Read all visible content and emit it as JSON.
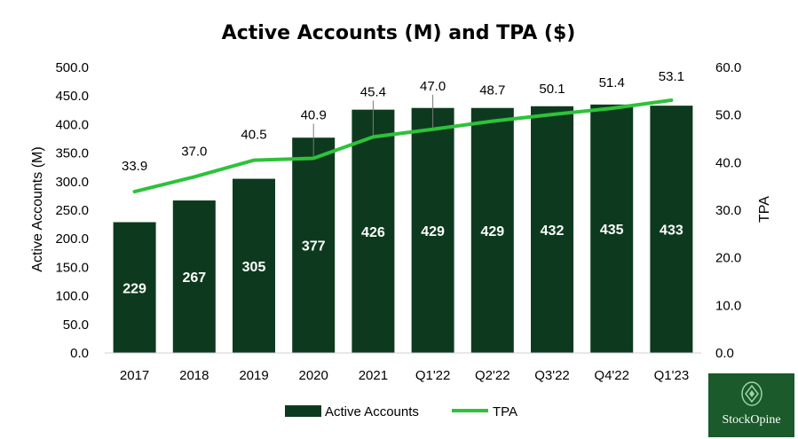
{
  "chart_data": {
    "type": "bar",
    "title": "Active Accounts (M) and TPA ($)",
    "categories": [
      "2017",
      "2018",
      "2019",
      "2020",
      "2021",
      "Q1'22",
      "Q2'22",
      "Q3'22",
      "Q4'22",
      "Q1'23"
    ],
    "series": [
      {
        "name": "Active Accounts",
        "type": "bar",
        "axis": "left",
        "values": [
          229,
          267,
          305,
          377,
          426,
          429,
          429,
          432,
          435,
          433
        ],
        "color": "#0d3a1f"
      },
      {
        "name": "TPA",
        "type": "line",
        "axis": "right",
        "values": [
          33.9,
          37.0,
          40.5,
          40.9,
          45.4,
          47.0,
          48.7,
          50.1,
          51.4,
          53.1
        ],
        "labels": [
          "33.9",
          "37.0",
          "40.5",
          "40.9",
          "45.4",
          "47.0",
          "48.7",
          "50.1",
          "51.4",
          "53.1"
        ],
        "color": "#2ec23a"
      }
    ],
    "ylabel": "Active Accounts (M)",
    "y2label": "TPA",
    "ylim": [
      0,
      500
    ],
    "y2lim": [
      0,
      60
    ],
    "yticks": [
      "0.0",
      "50.0",
      "100.0",
      "150.0",
      "200.0",
      "250.0",
      "300.0",
      "350.0",
      "400.0",
      "450.0",
      "500.0"
    ],
    "y2ticks": [
      "0.0",
      "10.0",
      "20.0",
      "30.0",
      "40.0",
      "50.0",
      "60.0"
    ],
    "grid": false,
    "legend": "bottom"
  },
  "watermark": {
    "text": "StockOpine",
    "color": "#1a5a2b"
  }
}
